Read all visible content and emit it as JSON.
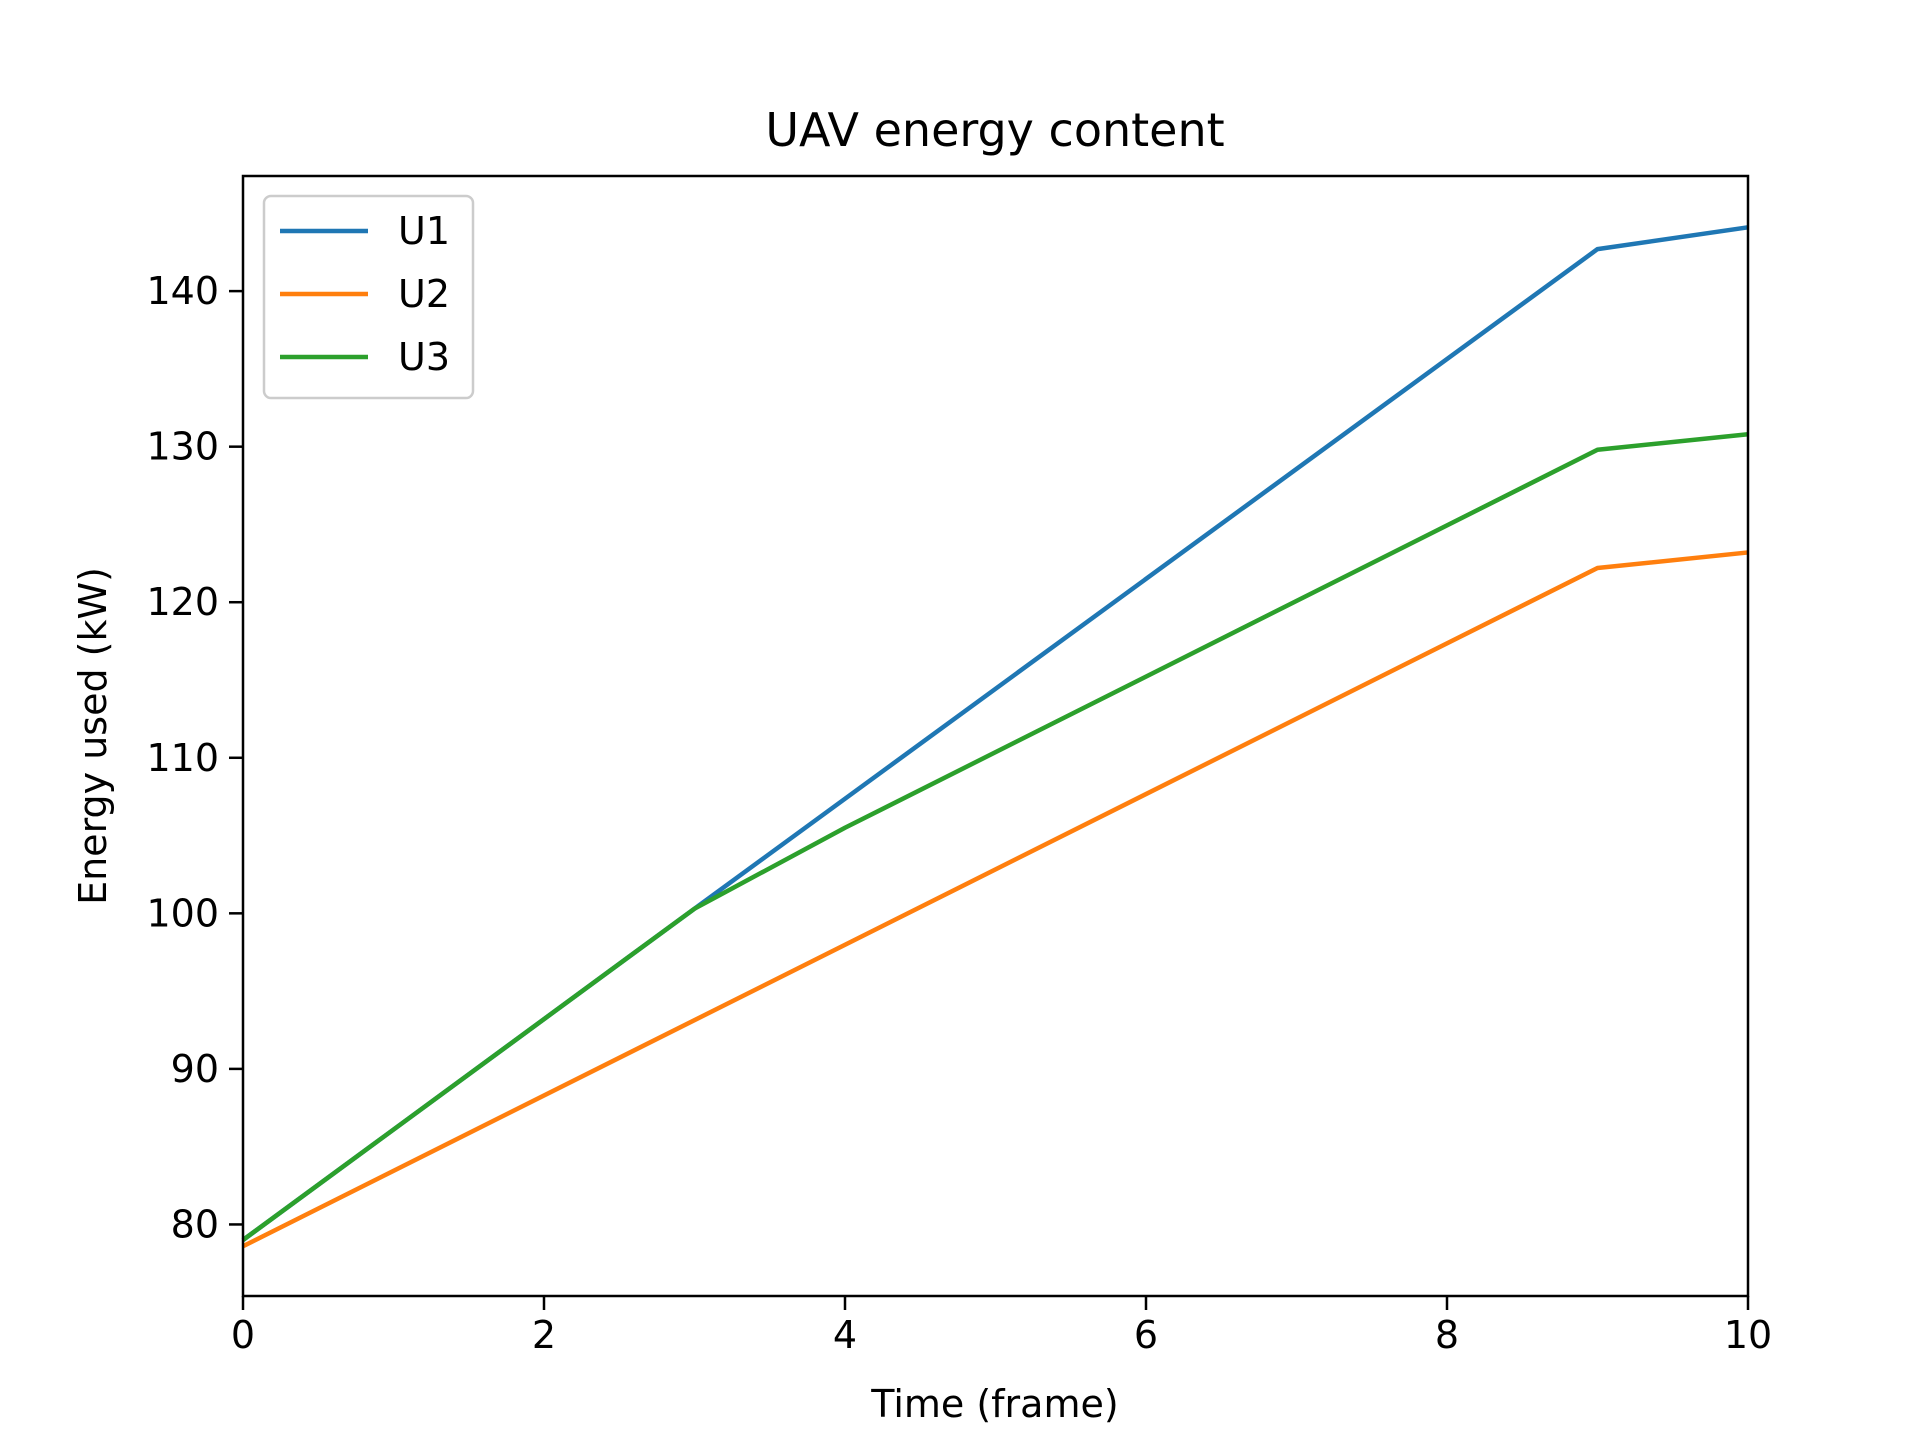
{
  "chart_data": {
    "type": "line",
    "title": "UAV energy content",
    "xlabel": "Time (frame)",
    "ylabel": "Energy used (kW)",
    "xlim": [
      0,
      10
    ],
    "ylim": [
      75.4,
      147.4
    ],
    "xticks": [
      0,
      2,
      4,
      6,
      8,
      10
    ],
    "yticks": [
      80,
      90,
      100,
      110,
      120,
      130,
      140
    ],
    "grid": false,
    "legend_position": "top-left",
    "series": [
      {
        "name": "U1",
        "color": "#1f77b4",
        "x": [
          0,
          3,
          9,
          10
        ],
        "y": [
          79.0,
          100.3,
          142.7,
          144.1
        ]
      },
      {
        "name": "U2",
        "color": "#ff7f0e",
        "x": [
          0,
          9,
          10
        ],
        "y": [
          78.6,
          122.2,
          123.2
        ]
      },
      {
        "name": "U3",
        "color": "#2ca02c",
        "x": [
          0,
          3,
          4,
          9,
          10
        ],
        "y": [
          79.0,
          100.3,
          105.5,
          129.8,
          130.8
        ]
      }
    ]
  }
}
